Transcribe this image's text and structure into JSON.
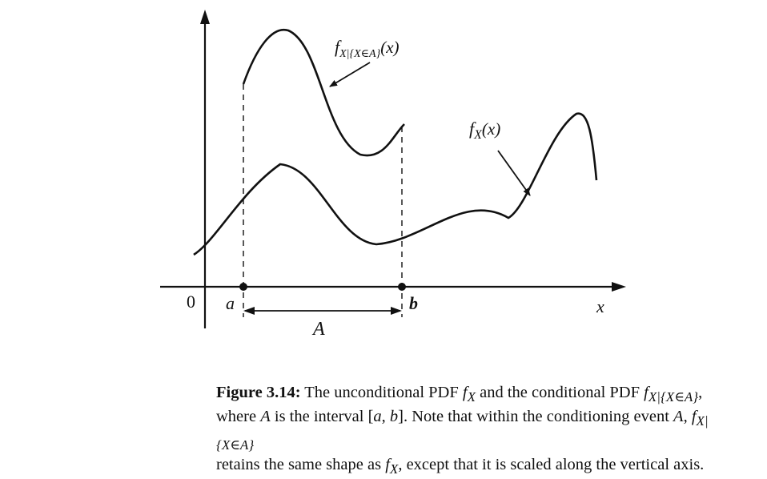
{
  "figure": {
    "labels": {
      "origin": "0",
      "a": "a",
      "b": "b",
      "x_axis": "x",
      "interval": "A",
      "curve_conditional": "f",
      "curve_conditional_sub": "X|{X∈A}",
      "curve_conditional_arg": "(x)",
      "curve_unconditional": "f",
      "curve_unconditional_sub": "X",
      "curve_unconditional_arg": "(x)"
    }
  },
  "caption": {
    "label": "Figure 3.14:",
    "t1": " The unconditional PDF ",
    "fx": "f",
    "fx_sub": "X",
    "t2": " and the conditional PDF ",
    "fc": "f",
    "fc_sub": "X|{X∈A}",
    "t3": ",",
    "t4": "where ",
    "A1": "A",
    "t5": " is the interval [",
    "a": "a",
    "comma": ", ",
    "b": "b",
    "t6": "]. Note that within the conditioning event ",
    "A2": "A",
    "t7": ", ",
    "fc2": "f",
    "fc2_sub": "X|{X∈A}",
    "t8": "retains the same shape as ",
    "fx2": "f",
    "fx2_sub": "X",
    "t9": ", except that it is scaled along the vertical axis."
  }
}
